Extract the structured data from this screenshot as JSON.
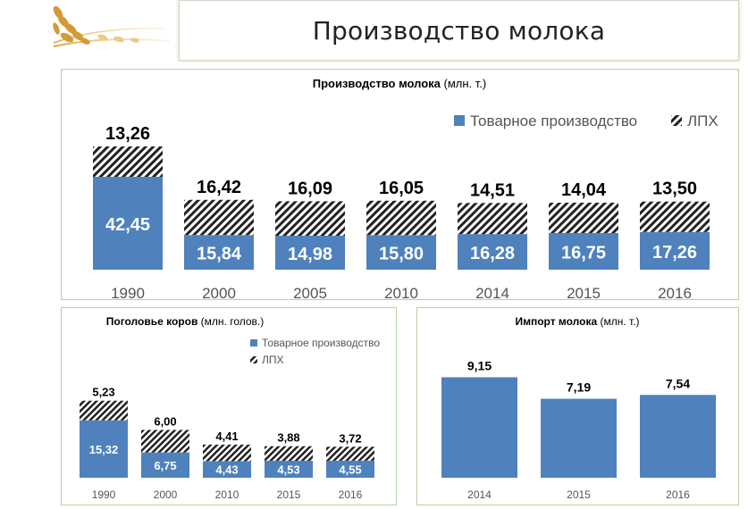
{
  "page": {
    "title": "Производство молока"
  },
  "colors": {
    "tovar": "#4f81bd",
    "lph_hatch": "#222222",
    "axis_text": "#555555",
    "panel_border": "#b7cfa6"
  },
  "legend": {
    "tovar": "Товарное производство",
    "lph": "ЛПХ"
  },
  "chart_data": [
    {
      "id": "production",
      "type": "bar",
      "stacked": true,
      "title_bold": "Производство молока",
      "title_unit": "(млн. т.)",
      "categories": [
        "1990",
        "2000",
        "2005",
        "2010",
        "2014",
        "2015",
        "2016"
      ],
      "series": [
        {
          "name": "Товарное производство",
          "values": [
            42.45,
            15.84,
            14.98,
            15.8,
            16.28,
            16.75,
            17.26
          ]
        },
        {
          "name": "ЛПХ",
          "values": [
            13.26,
            16.42,
            16.09,
            16.05,
            14.51,
            14.04,
            13.5
          ]
        }
      ],
      "labels_bottom": [
        "42,45",
        "15,84",
        "14,98",
        "15,80",
        "16,28",
        "16,75",
        "17,26"
      ],
      "labels_top": [
        "13,26",
        "16,42",
        "16,09",
        "16,05",
        "14,51",
        "14,04",
        "13,50"
      ],
      "legend_position": "top-right",
      "grid": false
    },
    {
      "id": "cows",
      "type": "bar",
      "stacked": true,
      "title_bold": "Поголовье коров",
      "title_unit": "(млн. голов.)",
      "categories": [
        "1990",
        "2000",
        "2010",
        "2015",
        "2016"
      ],
      "series": [
        {
          "name": "Товарное производство",
          "values": [
            15.32,
            6.75,
            4.43,
            4.53,
            4.55
          ]
        },
        {
          "name": "ЛПХ",
          "values": [
            5.23,
            6.0,
            4.41,
            3.88,
            3.72
          ]
        }
      ],
      "labels_bottom": [
        "15,32",
        "6,75",
        "4,43",
        "4,53",
        "4,55"
      ],
      "labels_top": [
        "5,23",
        "6,00",
        "4,41",
        "3,88",
        "3,72"
      ],
      "legend_position": "top-right",
      "grid": false
    },
    {
      "id": "import",
      "type": "bar",
      "title_bold": "Импорт молока",
      "title_unit": "(млн. т.)",
      "categories": [
        "2014",
        "2015",
        "2016"
      ],
      "values": [
        9.15,
        7.19,
        7.54
      ],
      "labels": [
        "9,15",
        "7,19",
        "7,54"
      ],
      "grid": false
    }
  ]
}
